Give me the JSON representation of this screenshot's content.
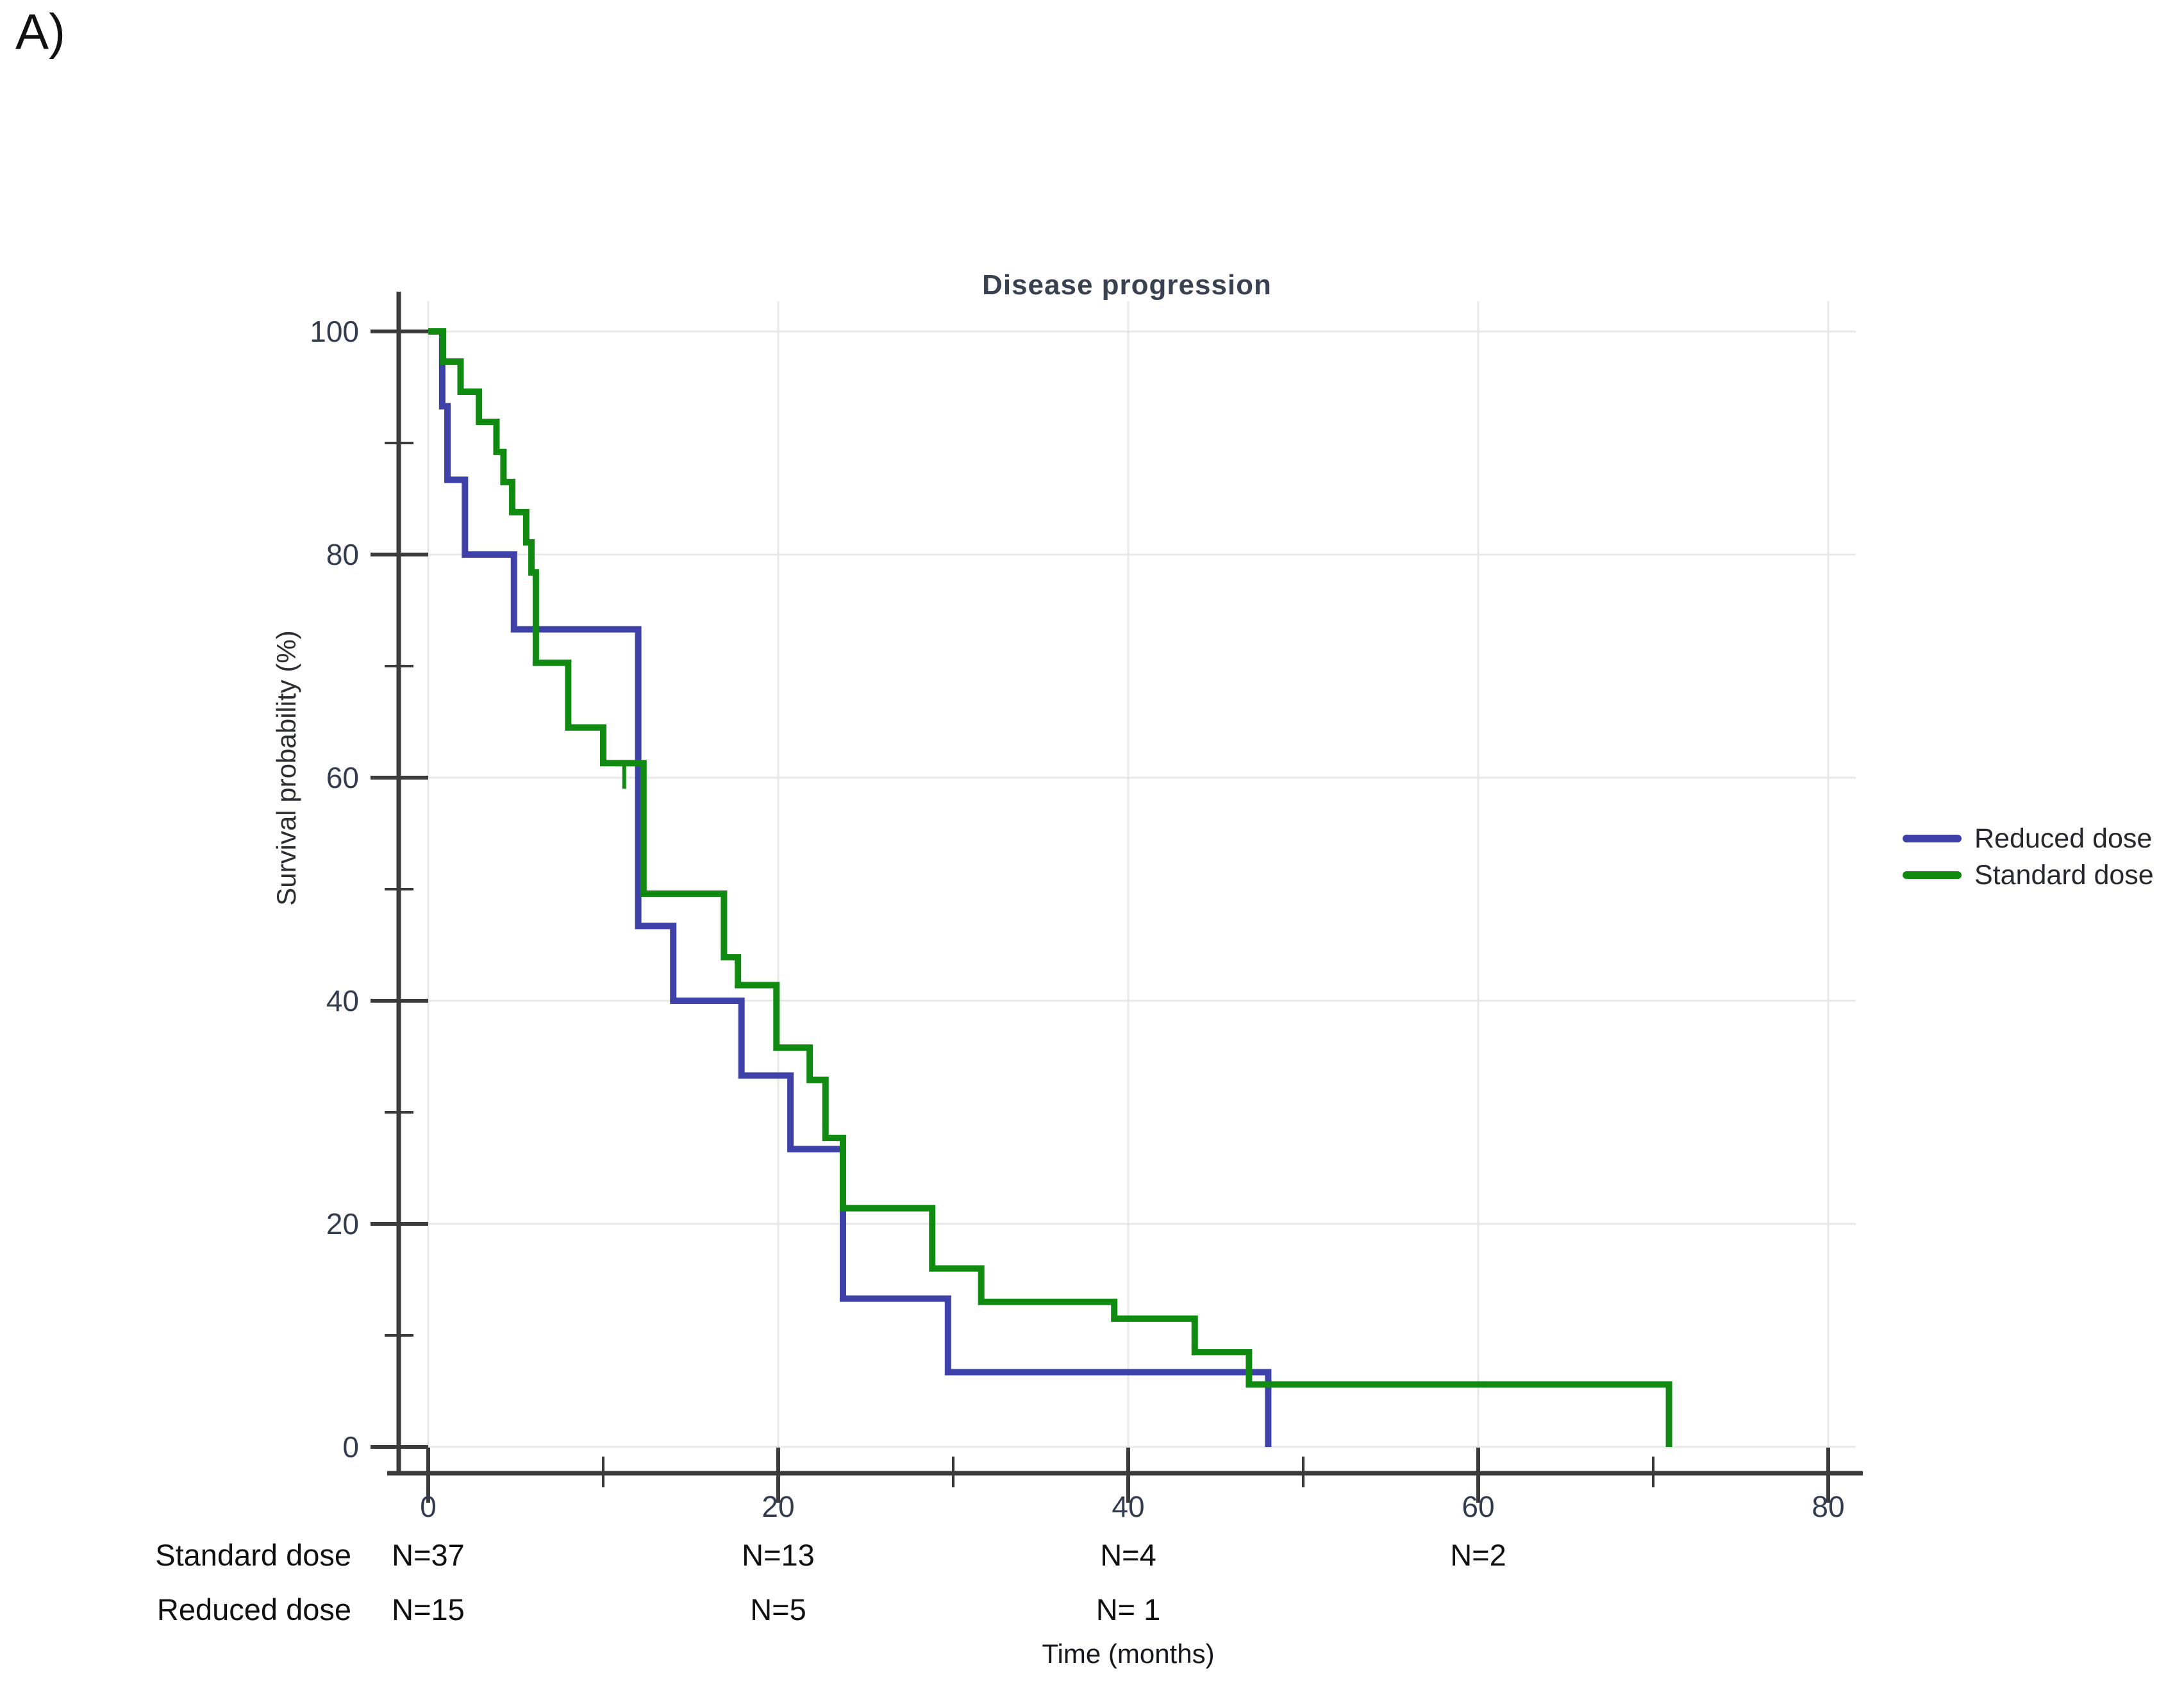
{
  "panel_label": "A)",
  "chart_data": {
    "type": "line",
    "subtype": "kaplan-meier-step",
    "title": "Disease progression",
    "xlabel": "Time (months)",
    "ylabel": "Survival probability (%)",
    "xlim": [
      0,
      84
    ],
    "ylim": [
      0,
      100
    ],
    "grid": true,
    "legend_position": "right",
    "x_major_ticks": [
      0,
      20,
      40,
      60,
      80
    ],
    "x_minor_ticks": [
      10,
      30,
      50,
      70
    ],
    "y_major_ticks": [
      0,
      20,
      40,
      60,
      80,
      100
    ],
    "y_minor_ticks": [
      10,
      30,
      50,
      70,
      90
    ],
    "series": [
      {
        "name": "Reduced dose",
        "color": "#3e41a8",
        "steps": [
          [
            0,
            100
          ],
          [
            0.8,
            93.3
          ],
          [
            1.1,
            86.7
          ],
          [
            2.1,
            80.0
          ],
          [
            4.9,
            73.3
          ],
          [
            12.0,
            46.7
          ],
          [
            14.0,
            40.0
          ],
          [
            17.9,
            33.3
          ],
          [
            20.7,
            26.7
          ],
          [
            23.7,
            13.3
          ],
          [
            29.7,
            6.7
          ],
          [
            48.0,
            0
          ]
        ],
        "censor_marks": []
      },
      {
        "name": "Standard dose",
        "color": "#118a11",
        "steps": [
          [
            0,
            100
          ],
          [
            0.85,
            97.3
          ],
          [
            1.85,
            94.6
          ],
          [
            2.9,
            91.9
          ],
          [
            3.9,
            89.2
          ],
          [
            4.3,
            86.5
          ],
          [
            4.8,
            83.8
          ],
          [
            5.6,
            81.1
          ],
          [
            5.9,
            78.4
          ],
          [
            6.15,
            70.3
          ],
          [
            8.0,
            64.5
          ],
          [
            10.0,
            61.3
          ],
          [
            12.3,
            49.6
          ],
          [
            16.9,
            43.9
          ],
          [
            17.7,
            41.4
          ],
          [
            19.9,
            35.8
          ],
          [
            21.8,
            32.9
          ],
          [
            22.7,
            27.7
          ],
          [
            23.7,
            21.4
          ],
          [
            28.8,
            16.0
          ],
          [
            31.6,
            13.0
          ],
          [
            39.2,
            11.5
          ],
          [
            43.8,
            8.5
          ],
          [
            46.9,
            5.6
          ],
          [
            70.9,
            0
          ]
        ],
        "censor_marks": [
          [
            11.2,
            61.3
          ]
        ]
      }
    ]
  },
  "risk_table": {
    "rows": [
      {
        "label": "Standard dose",
        "counts": [
          {
            "month": 0,
            "text": "N=37"
          },
          {
            "month": 20,
            "text": "N=13"
          },
          {
            "month": 40,
            "text": "N=4"
          },
          {
            "month": 60,
            "text": "N=2"
          }
        ]
      },
      {
        "label": "Reduced dose",
        "counts": [
          {
            "month": 0,
            "text": "N=15"
          },
          {
            "month": 20,
            "text": "N=5"
          },
          {
            "month": 40,
            "text": "N= 1"
          }
        ]
      }
    ]
  },
  "colors": {
    "reduced_dose": "#3e41a8",
    "standard_dose": "#118a11",
    "grid": "#e8e8e8",
    "axis": "#3b3b3b",
    "tick_label": "#333c4f",
    "text": "#101010"
  }
}
